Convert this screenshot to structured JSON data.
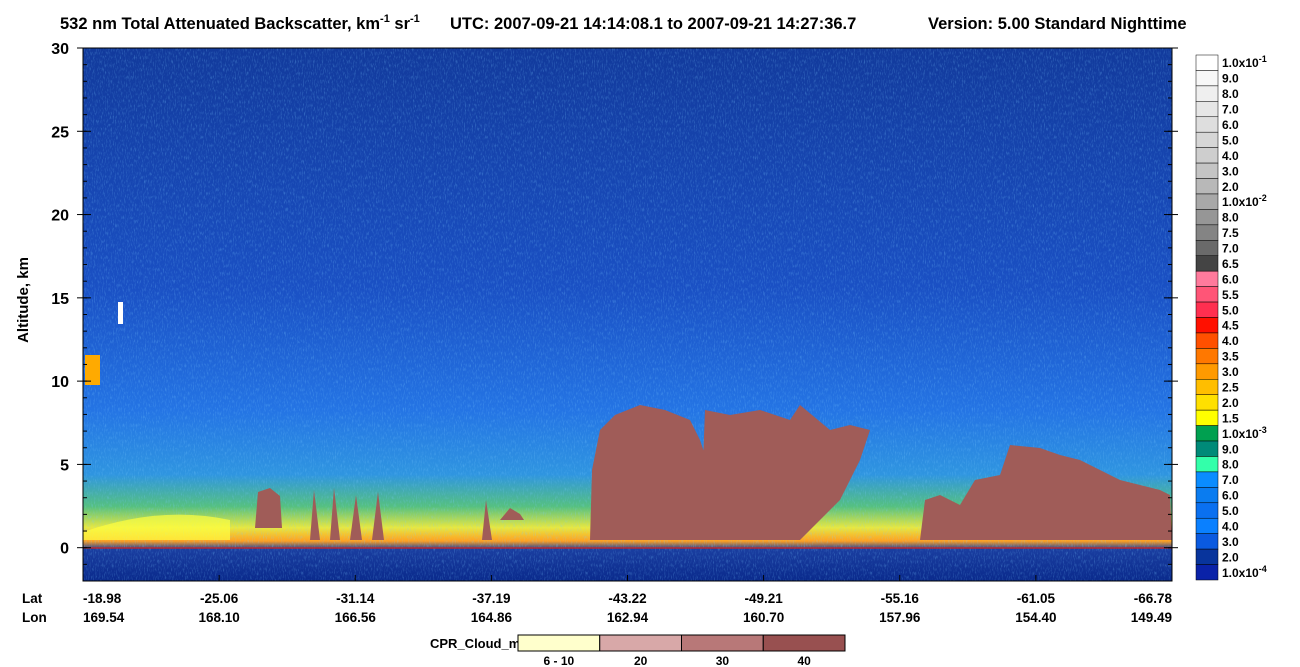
{
  "chart_data": {
    "type": "curtain",
    "title": {
      "main": "532 nm Total Attenuated Backscatter, km",
      "sup1": "-1",
      "unit2": " sr",
      "sup2": "-1",
      "time": "UTC:  2007-09-21 14:14:08.1  to  2007-09-21 14:27:36.7",
      "version": "Version: 5.00  Standard  Nighttime"
    },
    "y_label": "Altitude, km",
    "ylim": [
      -2,
      30
    ],
    "yticks": [
      0,
      5,
      10,
      15,
      20,
      25,
      30
    ],
    "x_rows": [
      {
        "name": "Lat",
        "labels": [
          "-18.98",
          "-25.06",
          "-31.14",
          "-37.19",
          "-43.22",
          "-49.21",
          "-55.16",
          "-61.05",
          "-66.78"
        ]
      },
      {
        "name": "Lon",
        "labels": [
          "169.54",
          "168.10",
          "166.56",
          "164.86",
          "162.94",
          "160.70",
          "157.96",
          "154.40",
          "149.49"
        ]
      }
    ],
    "colorbar": [
      {
        "label": "1.0x10",
        "exp": "-1",
        "color": "#ffffff"
      },
      {
        "label": "9.0",
        "color": "#f7f7f7"
      },
      {
        "label": "8.0",
        "color": "#efefef"
      },
      {
        "label": "7.0",
        "color": "#e6e6e6"
      },
      {
        "label": "6.0",
        "color": "#dedede"
      },
      {
        "label": "5.0",
        "color": "#d6d6d6"
      },
      {
        "label": "4.0",
        "color": "#cecece"
      },
      {
        "label": "3.0",
        "color": "#c4c4c4"
      },
      {
        "label": "2.0",
        "color": "#b8b8b8"
      },
      {
        "label": "1.0x10",
        "exp": "-2",
        "color": "#a8a8a8"
      },
      {
        "label": "8.0",
        "color": "#969696"
      },
      {
        "label": "7.5",
        "color": "#848484"
      },
      {
        "label": "7.0",
        "color": "#6a6a6a"
      },
      {
        "label": "6.5",
        "color": "#444444"
      },
      {
        "label": "6.0",
        "color": "#ff7a9c"
      },
      {
        "label": "5.5",
        "color": "#ff5577"
      },
      {
        "label": "5.0",
        "color": "#ff2f50"
      },
      {
        "label": "4.5",
        "color": "#ff1000"
      },
      {
        "label": "4.0",
        "color": "#ff5000"
      },
      {
        "label": "3.5",
        "color": "#ff7800"
      },
      {
        "label": "3.0",
        "color": "#ff9a00"
      },
      {
        "label": "2.5",
        "color": "#ffbe00"
      },
      {
        "label": "2.0",
        "color": "#ffe000"
      },
      {
        "label": "1.5",
        "color": "#ffff00"
      },
      {
        "label": "1.0x10",
        "exp": "-3",
        "color": "#00a050"
      },
      {
        "label": "9.0",
        "color": "#008a78"
      },
      {
        "label": "8.0",
        "color": "#33ffaa"
      },
      {
        "label": "7.0",
        "color": "#0a8cff"
      },
      {
        "label": "6.0",
        "color": "#0a7cf0"
      },
      {
        "label": "5.0",
        "color": "#0a70f0"
      },
      {
        "label": "4.0",
        "color": "#0a80ff"
      },
      {
        "label": "3.0",
        "color": "#0a5ae0"
      },
      {
        "label": "2.0",
        "color": "#08349c"
      },
      {
        "label": "1.0x10",
        "exp": "-4",
        "color": "#0a22a8"
      }
    ],
    "cloud_mask": {
      "title": "CPR_Cloud_mask",
      "entries": [
        {
          "label": "6 - 10",
          "color": "#ffffcc"
        },
        {
          "label": "20",
          "color": "#d8a8a8"
        },
        {
          "label": "30",
          "color": "#b87878"
        },
        {
          "label": "40",
          "color": "#985050"
        }
      ]
    }
  }
}
